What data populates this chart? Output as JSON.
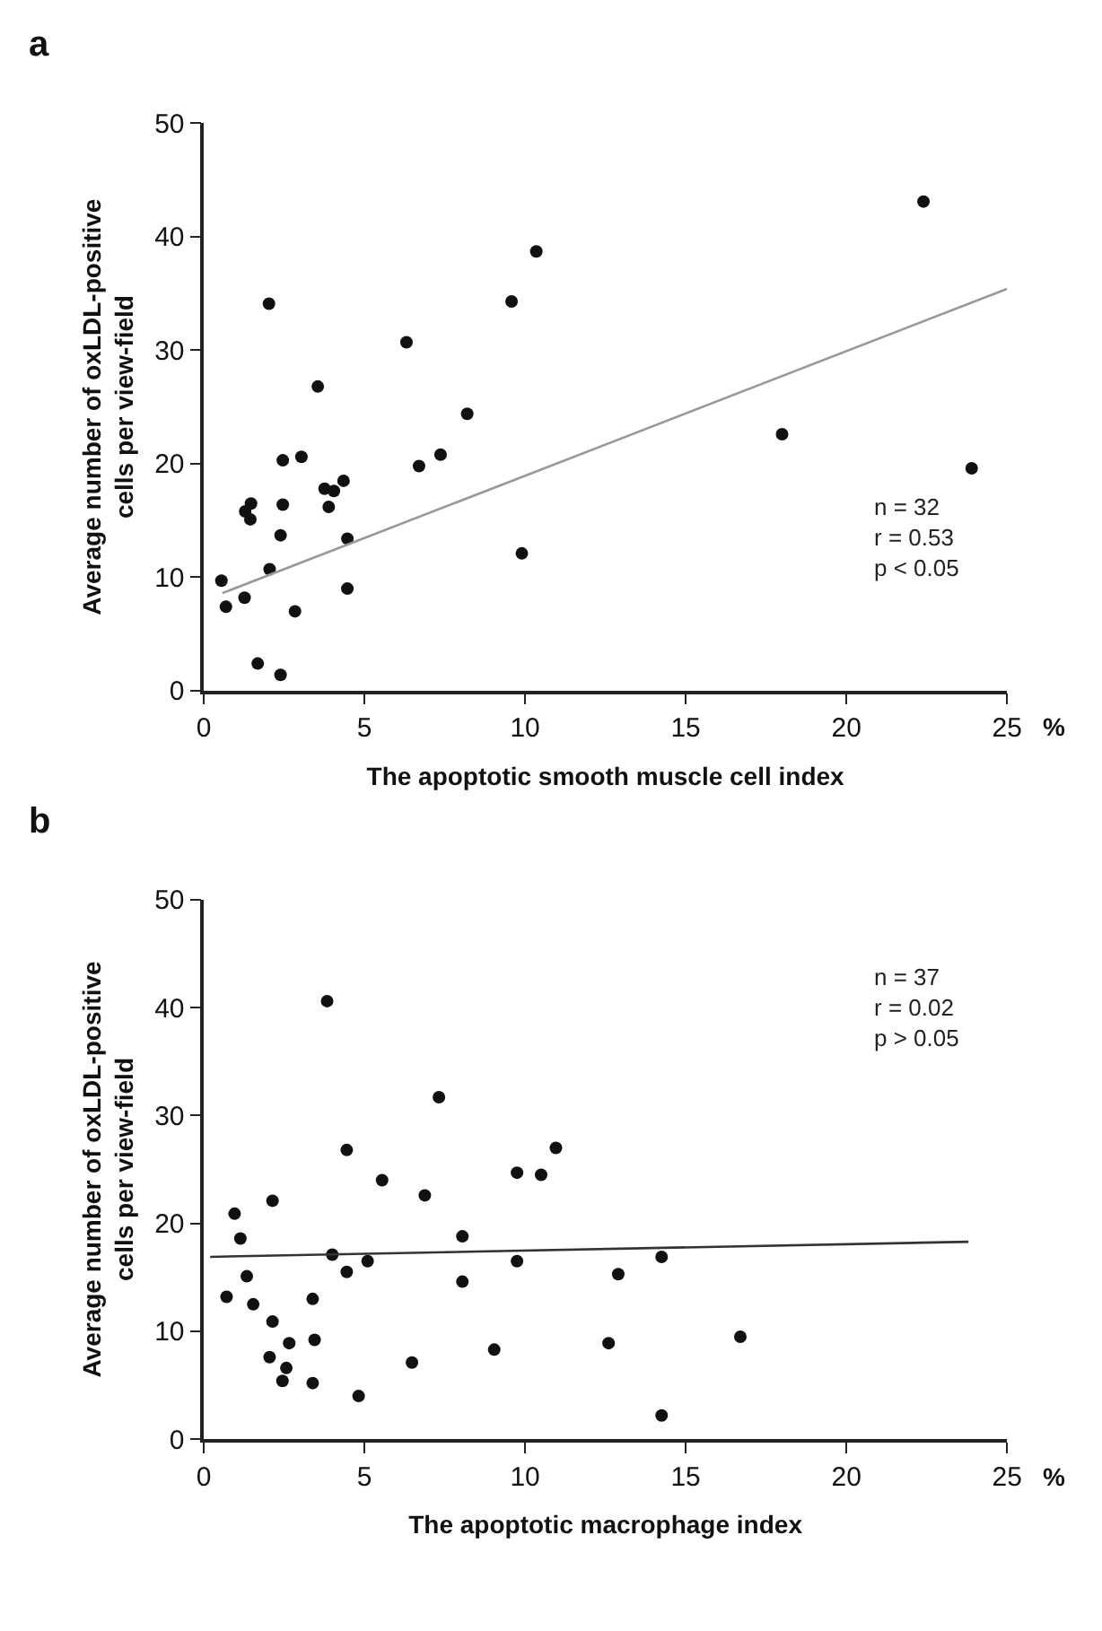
{
  "chart_data": [
    {
      "type": "scatter",
      "title": "a",
      "xlabel": "The apoptotic smooth muscle cell index",
      "ylabel": "Average number of oxLDL-positive\ncells per view-field",
      "xlim": [
        0,
        25
      ],
      "ylim": [
        0,
        50
      ],
      "xticks": [
        0,
        5,
        10,
        15,
        20,
        25
      ],
      "yticks": [
        0,
        10,
        20,
        30,
        40,
        50
      ],
      "marker": "circle",
      "annotations": [
        "n = 32\nr = 0.53\np < 0.05",
        "%"
      ],
      "series": [
        {
          "color": "#111111",
          "x": [
            22.4,
            10.35,
            2.03,
            9.58,
            6.31,
            3.55,
            8.2,
            18.0,
            23.9,
            2.46,
            3.04,
            7.37,
            6.7,
            4.35,
            3.76,
            4.05,
            1.47,
            2.46,
            3.89,
            1.29,
            1.45,
            2.39,
            4.47,
            2.05,
            0.55,
            9.9,
            0.69,
            1.27,
            4.47,
            2.84,
            1.68,
            2.39
          ],
          "values": [
            43.1,
            38.7,
            34.1,
            34.3,
            30.7,
            26.8,
            24.4,
            22.6,
            19.6,
            20.3,
            20.6,
            20.8,
            19.8,
            18.5,
            17.8,
            17.6,
            16.5,
            16.4,
            16.2,
            15.8,
            15.1,
            13.7,
            13.4,
            10.7,
            9.7,
            12.1,
            7.4,
            8.2,
            9.0,
            7.0,
            2.4,
            1.4
          ]
        },
        {
          "type": "line",
          "color": "#999999",
          "marker": "none",
          "line_style": "solid",
          "x": [
            0.58,
            25
          ],
          "values": [
            8.6,
            35.4
          ]
        }
      ]
    },
    {
      "type": "scatter",
      "title": "b",
      "xlabel": "The apoptotic macrophage index",
      "ylabel": "Average number of oxLDL-positive\ncells per view-field",
      "xlim": [
        0,
        25
      ],
      "ylim": [
        0,
        50
      ],
      "xticks": [
        0,
        5,
        10,
        15,
        20,
        25
      ],
      "yticks": [
        0,
        10,
        20,
        30,
        40,
        50
      ],
      "marker": "circle",
      "annotations": [
        "n = 37\nr = 0.02\np > 0.05",
        "%"
      ],
      "series": [
        {
          "color": "#111111",
          "x": [
            3.84,
            7.32,
            4.45,
            10.96,
            9.75,
            10.5,
            5.55,
            6.88,
            2.14,
            0.96,
            1.14,
            8.05,
            4.0,
            14.25,
            5.1,
            9.75,
            4.45,
            12.9,
            1.34,
            8.05,
            0.71,
            3.39,
            1.54,
            2.14,
            16.7,
            3.45,
            2.66,
            12.6,
            9.04,
            2.05,
            6.48,
            2.57,
            2.45,
            3.39,
            4.82,
            14.25
          ],
          "values": [
            40.6,
            31.7,
            26.8,
            27.0,
            24.7,
            24.5,
            24.0,
            22.6,
            22.1,
            20.9,
            18.6,
            18.8,
            17.1,
            16.9,
            16.5,
            16.5,
            15.5,
            15.3,
            15.1,
            14.6,
            13.2,
            13.0,
            12.5,
            10.9,
            9.5,
            9.2,
            8.9,
            8.9,
            8.3,
            7.6,
            7.1,
            6.6,
            5.4,
            5.2,
            4.0,
            2.2
          ]
        },
        {
          "type": "line",
          "color": "#333333",
          "marker": "none",
          "line_style": "solid",
          "x": [
            0.2,
            23.8
          ],
          "values": [
            16.9,
            18.3
          ]
        }
      ]
    }
  ]
}
